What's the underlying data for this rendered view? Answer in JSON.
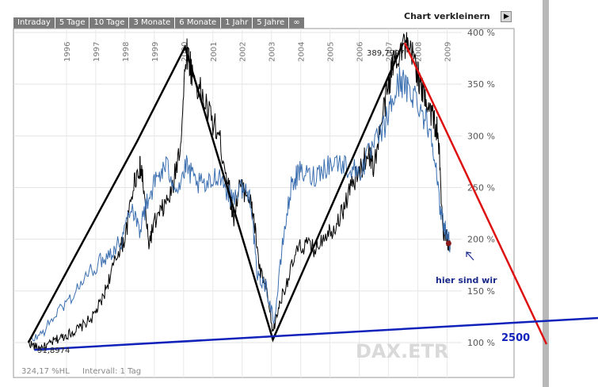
{
  "toolbar": {
    "tabs": [
      "Intraday",
      "5 Tage",
      "10 Tage",
      "3 Monate",
      "6 Monate",
      "1 Jahr",
      "5 Jahre",
      "∞"
    ],
    "shrink_label": "Chart verkleinern"
  },
  "colors": {
    "price_line": "#000000",
    "compare_line": "#3b6fb0",
    "zigzag": "#000000",
    "trend_down": "#dd1111",
    "support": "#1122bb",
    "annotation": "#1a2a8a",
    "watermark": "#d9d9d9"
  },
  "chart_data": {
    "type": "line",
    "title": "",
    "watermark": "DAX.ETR",
    "y_ticks": [
      "400 %",
      "350 %",
      "300 %",
      "250 %",
      "200 %",
      "150 %",
      "100 %"
    ],
    "x_ticks": [
      "1996",
      "1997",
      "1998",
      "1999",
      "2000",
      "2001",
      "2002",
      "2003",
      "2004",
      "2005",
      "2006",
      "2007",
      "2008",
      "2009"
    ],
    "ylim": [
      60,
      405
    ],
    "xlim": [
      1994.65,
      2009.5
    ],
    "grid": true,
    "series": [
      {
        "points": [
          [
            1994.7,
            100
          ],
          [
            1995,
            95
          ],
          [
            1995.3,
            96
          ],
          [
            1995.6,
            102
          ],
          [
            1995.9,
            106
          ],
          [
            1996.2,
            110
          ],
          [
            1996.5,
            115
          ],
          [
            1996.9,
            125
          ],
          [
            1997.2,
            140
          ],
          [
            1997.5,
            165
          ],
          [
            1997.8,
            190
          ],
          [
            1998,
            200
          ],
          [
            1998.3,
            255
          ],
          [
            1998.5,
            270
          ],
          [
            1998.6,
            260
          ],
          [
            1998.8,
            195
          ],
          [
            1999,
            215
          ],
          [
            1999.3,
            230
          ],
          [
            1999.6,
            245
          ],
          [
            1999.9,
            295
          ],
          [
            2000.1,
            385
          ],
          [
            2000.3,
            360
          ],
          [
            2000.6,
            340
          ],
          [
            2000.9,
            320
          ],
          [
            2001.2,
            300
          ],
          [
            2001.5,
            260
          ],
          [
            2001.7,
            220
          ],
          [
            2001.9,
            250
          ],
          [
            2002.2,
            245
          ],
          [
            2002.4,
            220
          ],
          [
            2002.6,
            170
          ],
          [
            2002.8,
            155
          ],
          [
            2003.05,
            110
          ],
          [
            2003.3,
            140
          ],
          [
            2003.6,
            165
          ],
          [
            2003.9,
            190
          ],
          [
            2004.2,
            195
          ],
          [
            2004.5,
            190
          ],
          [
            2004.8,
            205
          ],
          [
            2005.1,
            210
          ],
          [
            2005.4,
            225
          ],
          [
            2005.7,
            250
          ],
          [
            2006,
            265
          ],
          [
            2006.3,
            285
          ],
          [
            2006.5,
            270
          ],
          [
            2006.8,
            320
          ],
          [
            2007,
            350
          ],
          [
            2007.2,
            375
          ],
          [
            2007.5,
            390
          ],
          [
            2007.7,
            380
          ],
          [
            2007.9,
            375
          ],
          [
            2008.1,
            345
          ],
          [
            2008.3,
            335
          ],
          [
            2008.5,
            320
          ],
          [
            2008.7,
            300
          ],
          [
            2008.85,
            210
          ],
          [
            2009,
            200
          ],
          [
            2009.1,
            190
          ]
        ]
      },
      {
        "points": [
          [
            1994.7,
            100
          ],
          [
            1995.2,
            110
          ],
          [
            1995.7,
            130
          ],
          [
            1996.2,
            145
          ],
          [
            1996.7,
            165
          ],
          [
            1997.2,
            180
          ],
          [
            1997.6,
            190
          ],
          [
            1997.9,
            200
          ],
          [
            1998.2,
            235
          ],
          [
            1998.5,
            210
          ],
          [
            1998.8,
            240
          ],
          [
            1999.1,
            260
          ],
          [
            1999.4,
            270
          ],
          [
            1999.8,
            250
          ],
          [
            2000.1,
            270
          ],
          [
            2000.4,
            255
          ],
          [
            2000.8,
            250
          ],
          [
            2001.2,
            265
          ],
          [
            2001.6,
            240
          ],
          [
            2002,
            250
          ],
          [
            2002.3,
            240
          ],
          [
            2002.5,
            165
          ],
          [
            2002.8,
            155
          ],
          [
            2003.1,
            120
          ],
          [
            2003.4,
            200
          ],
          [
            2003.7,
            255
          ],
          [
            2004,
            265
          ],
          [
            2004.4,
            260
          ],
          [
            2004.8,
            270
          ],
          [
            2005.2,
            275
          ],
          [
            2005.6,
            270
          ],
          [
            2006,
            265
          ],
          [
            2006.4,
            285
          ],
          [
            2006.8,
            305
          ],
          [
            2007.1,
            330
          ],
          [
            2007.4,
            355
          ],
          [
            2007.6,
            345
          ],
          [
            2007.9,
            340
          ],
          [
            2008.2,
            320
          ],
          [
            2008.5,
            300
          ],
          [
            2008.75,
            230
          ],
          [
            2009,
            205
          ],
          [
            2009.1,
            195
          ]
        ]
      }
    ],
    "zigzag_points": [
      [
        1994.7,
        100
      ],
      [
        1998.4,
        294
      ],
      [
        2000.05,
        386
      ],
      [
        2003.05,
        103
      ],
      [
        2007.5,
        390
      ]
    ],
    "red_trend": [
      [
        2007.55,
        390
      ],
      [
        2012.2,
        100
      ]
    ],
    "support_line": [
      [
        1994.9,
        93
      ],
      [
        2014.5,
        125
      ]
    ],
    "labels": {
      "peak": "389,7997",
      "low": "91,8974",
      "here": "hier sind wir",
      "level": "2500",
      "footer_left": "324,17 %HL",
      "footer_right": "Intervall: 1 Tag"
    }
  }
}
